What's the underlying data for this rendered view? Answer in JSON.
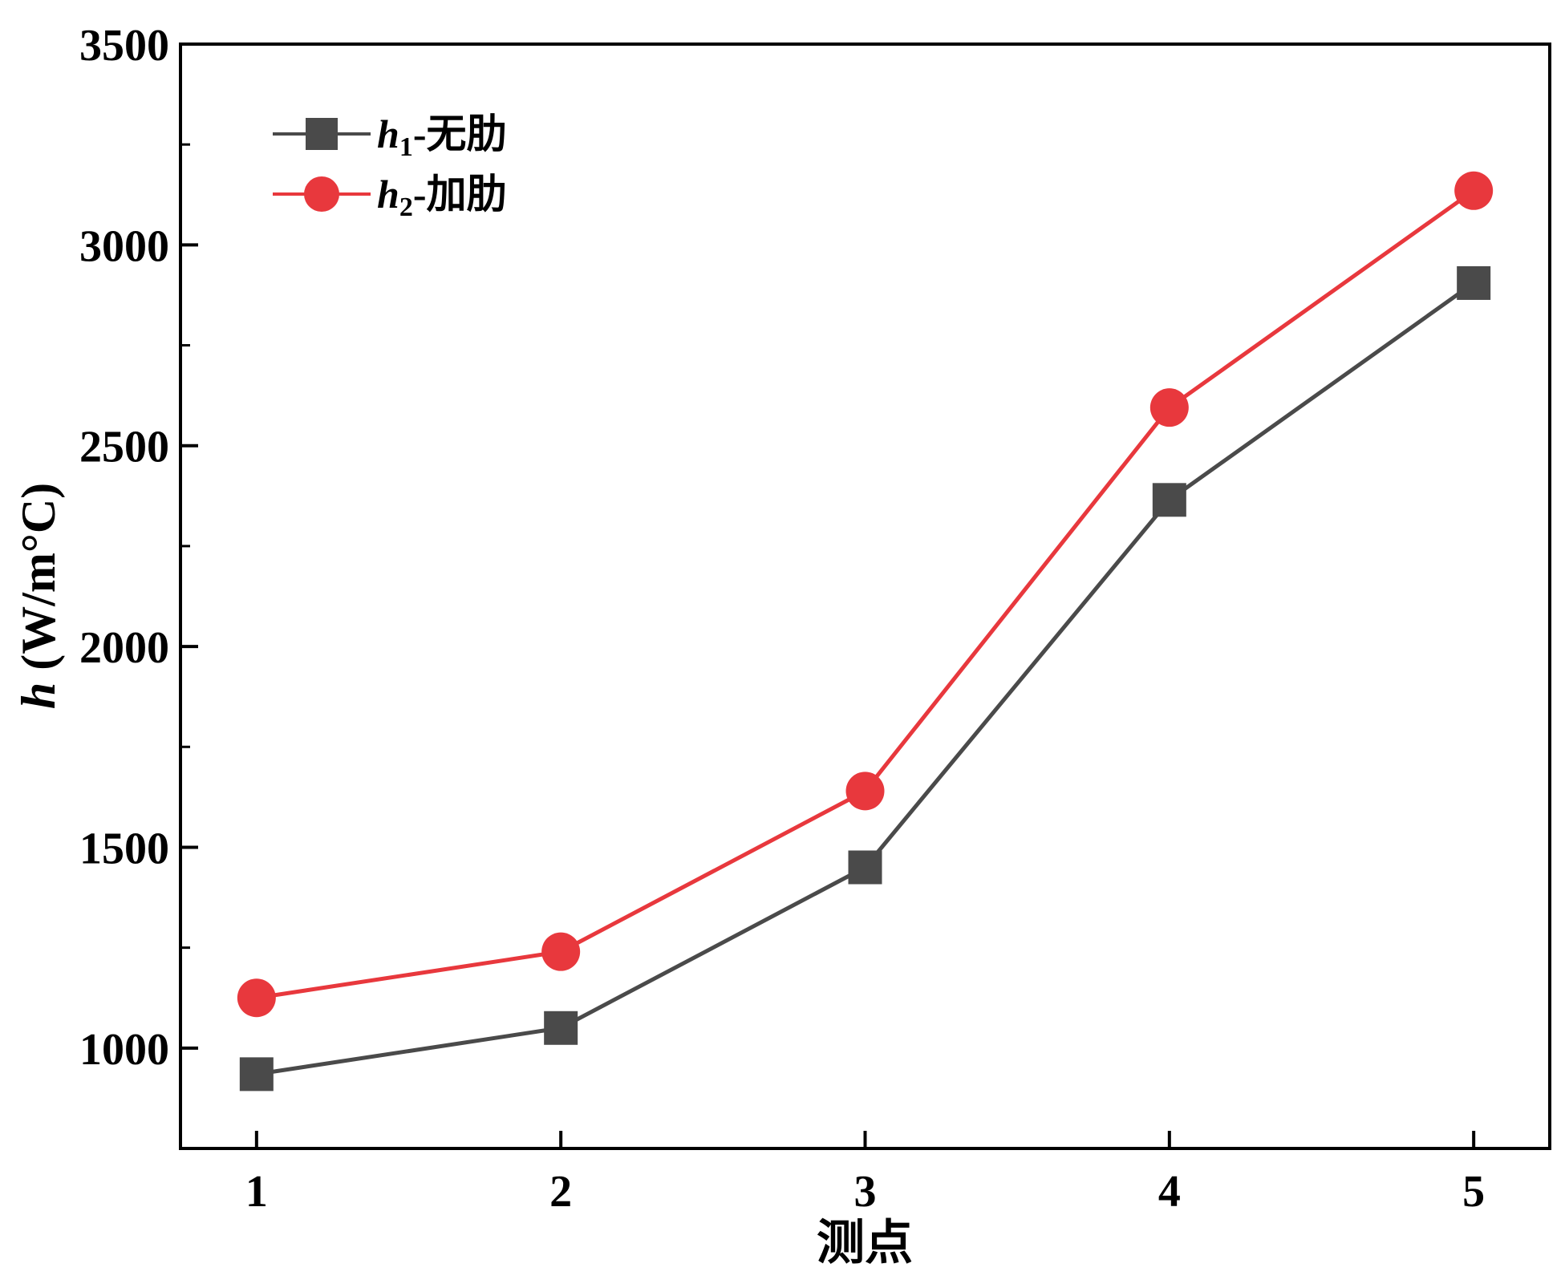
{
  "chart_data": {
    "type": "line",
    "x": [
      1,
      2,
      3,
      4,
      5
    ],
    "xlabel": "测点",
    "ylabel_italic": "h",
    "ylabel_unit": " (W/m°C)",
    "xlim": [
      0.75,
      5.25
    ],
    "ylim": [
      750,
      3500
    ],
    "yticks": [
      1000,
      1500,
      2000,
      2500,
      3000,
      3500
    ],
    "xticks": [
      1,
      2,
      3,
      4,
      5
    ],
    "grid": false,
    "legend_position": "top-left",
    "series": [
      {
        "name_var": "h",
        "name_sub": "1",
        "name_suffix": "-无肋",
        "marker": "square",
        "color": "#4a4a4a",
        "values": [
          935,
          1050,
          1450,
          2365,
          2905
        ]
      },
      {
        "name_var": "h",
        "name_sub": "2",
        "name_suffix": "-加肋",
        "marker": "circle",
        "color": "#e8383d",
        "values": [
          1125,
          1240,
          1640,
          2595,
          3135
        ]
      }
    ]
  }
}
